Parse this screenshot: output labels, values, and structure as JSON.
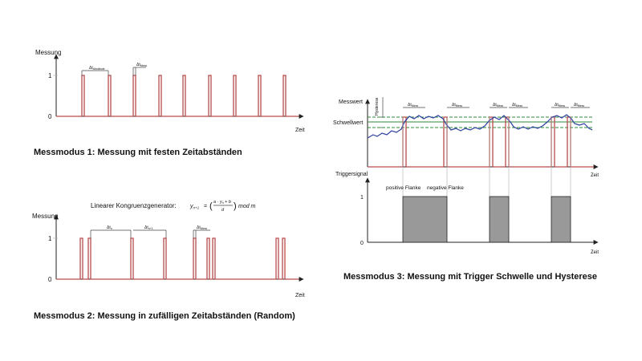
{
  "panel1": {
    "y_axis_label": "Messung",
    "x_axis_label": "Zeit",
    "tick_1": "1",
    "tick_0": "0",
    "dim_label_a": "Δt",
    "dim_label_a_sub": "Abstände",
    "dim_label_b": "Δt",
    "dim_label_b_sub": "Mess",
    "caption": "Messmodus 1: Messung mit festen Zeitabständen"
  },
  "panel2": {
    "formula_title": "Linearer Kongruenzgenerator:",
    "formula_lhs": "y",
    "formula_lhs_sub": "n+1",
    "formula_eq": "=",
    "formula_num": "a · y",
    "formula_num_sub": "n",
    "formula_num_tail": " + b",
    "formula_den": "d",
    "formula_mod": "mod m",
    "y_axis_label": "Messung",
    "x_axis_label": "Zeit",
    "tick_1": "1",
    "tick_0": "0",
    "dim_label_a": "Δt",
    "dim_label_a_sub": "n",
    "dim_label_b": "Δt",
    "dim_label_b_sub": "n+1",
    "dim_label_c": "Δt",
    "dim_label_c_sub": "Mess",
    "caption": "Messmodus 2: Messung in zufälligen Zeitabständen (Random)"
  },
  "panel3": {
    "top_y_axis_label": "Messwert",
    "threshold_label": "Schwellwert",
    "hysteresis_label": "Hysterese",
    "top_x_axis_label": "Zeit",
    "dim_label": "Δt",
    "dim_label_sub": "Mess",
    "bottom_y_axis_label": "Triggersignal",
    "tick_1": "1",
    "tick_0": "0",
    "rising_edge_label": "positive Flanke",
    "falling_edge_label": "negative Flanke",
    "bottom_x_axis_label": "Zeit",
    "caption": "Messmodus 3: Messung mit Trigger Schwelle und Hysterese"
  },
  "colors": {
    "pulse": "#b94a4a",
    "measured_curve": "#2b3f9e",
    "threshold_band": "#2e8b3a",
    "trigger_fill": "#999999"
  }
}
